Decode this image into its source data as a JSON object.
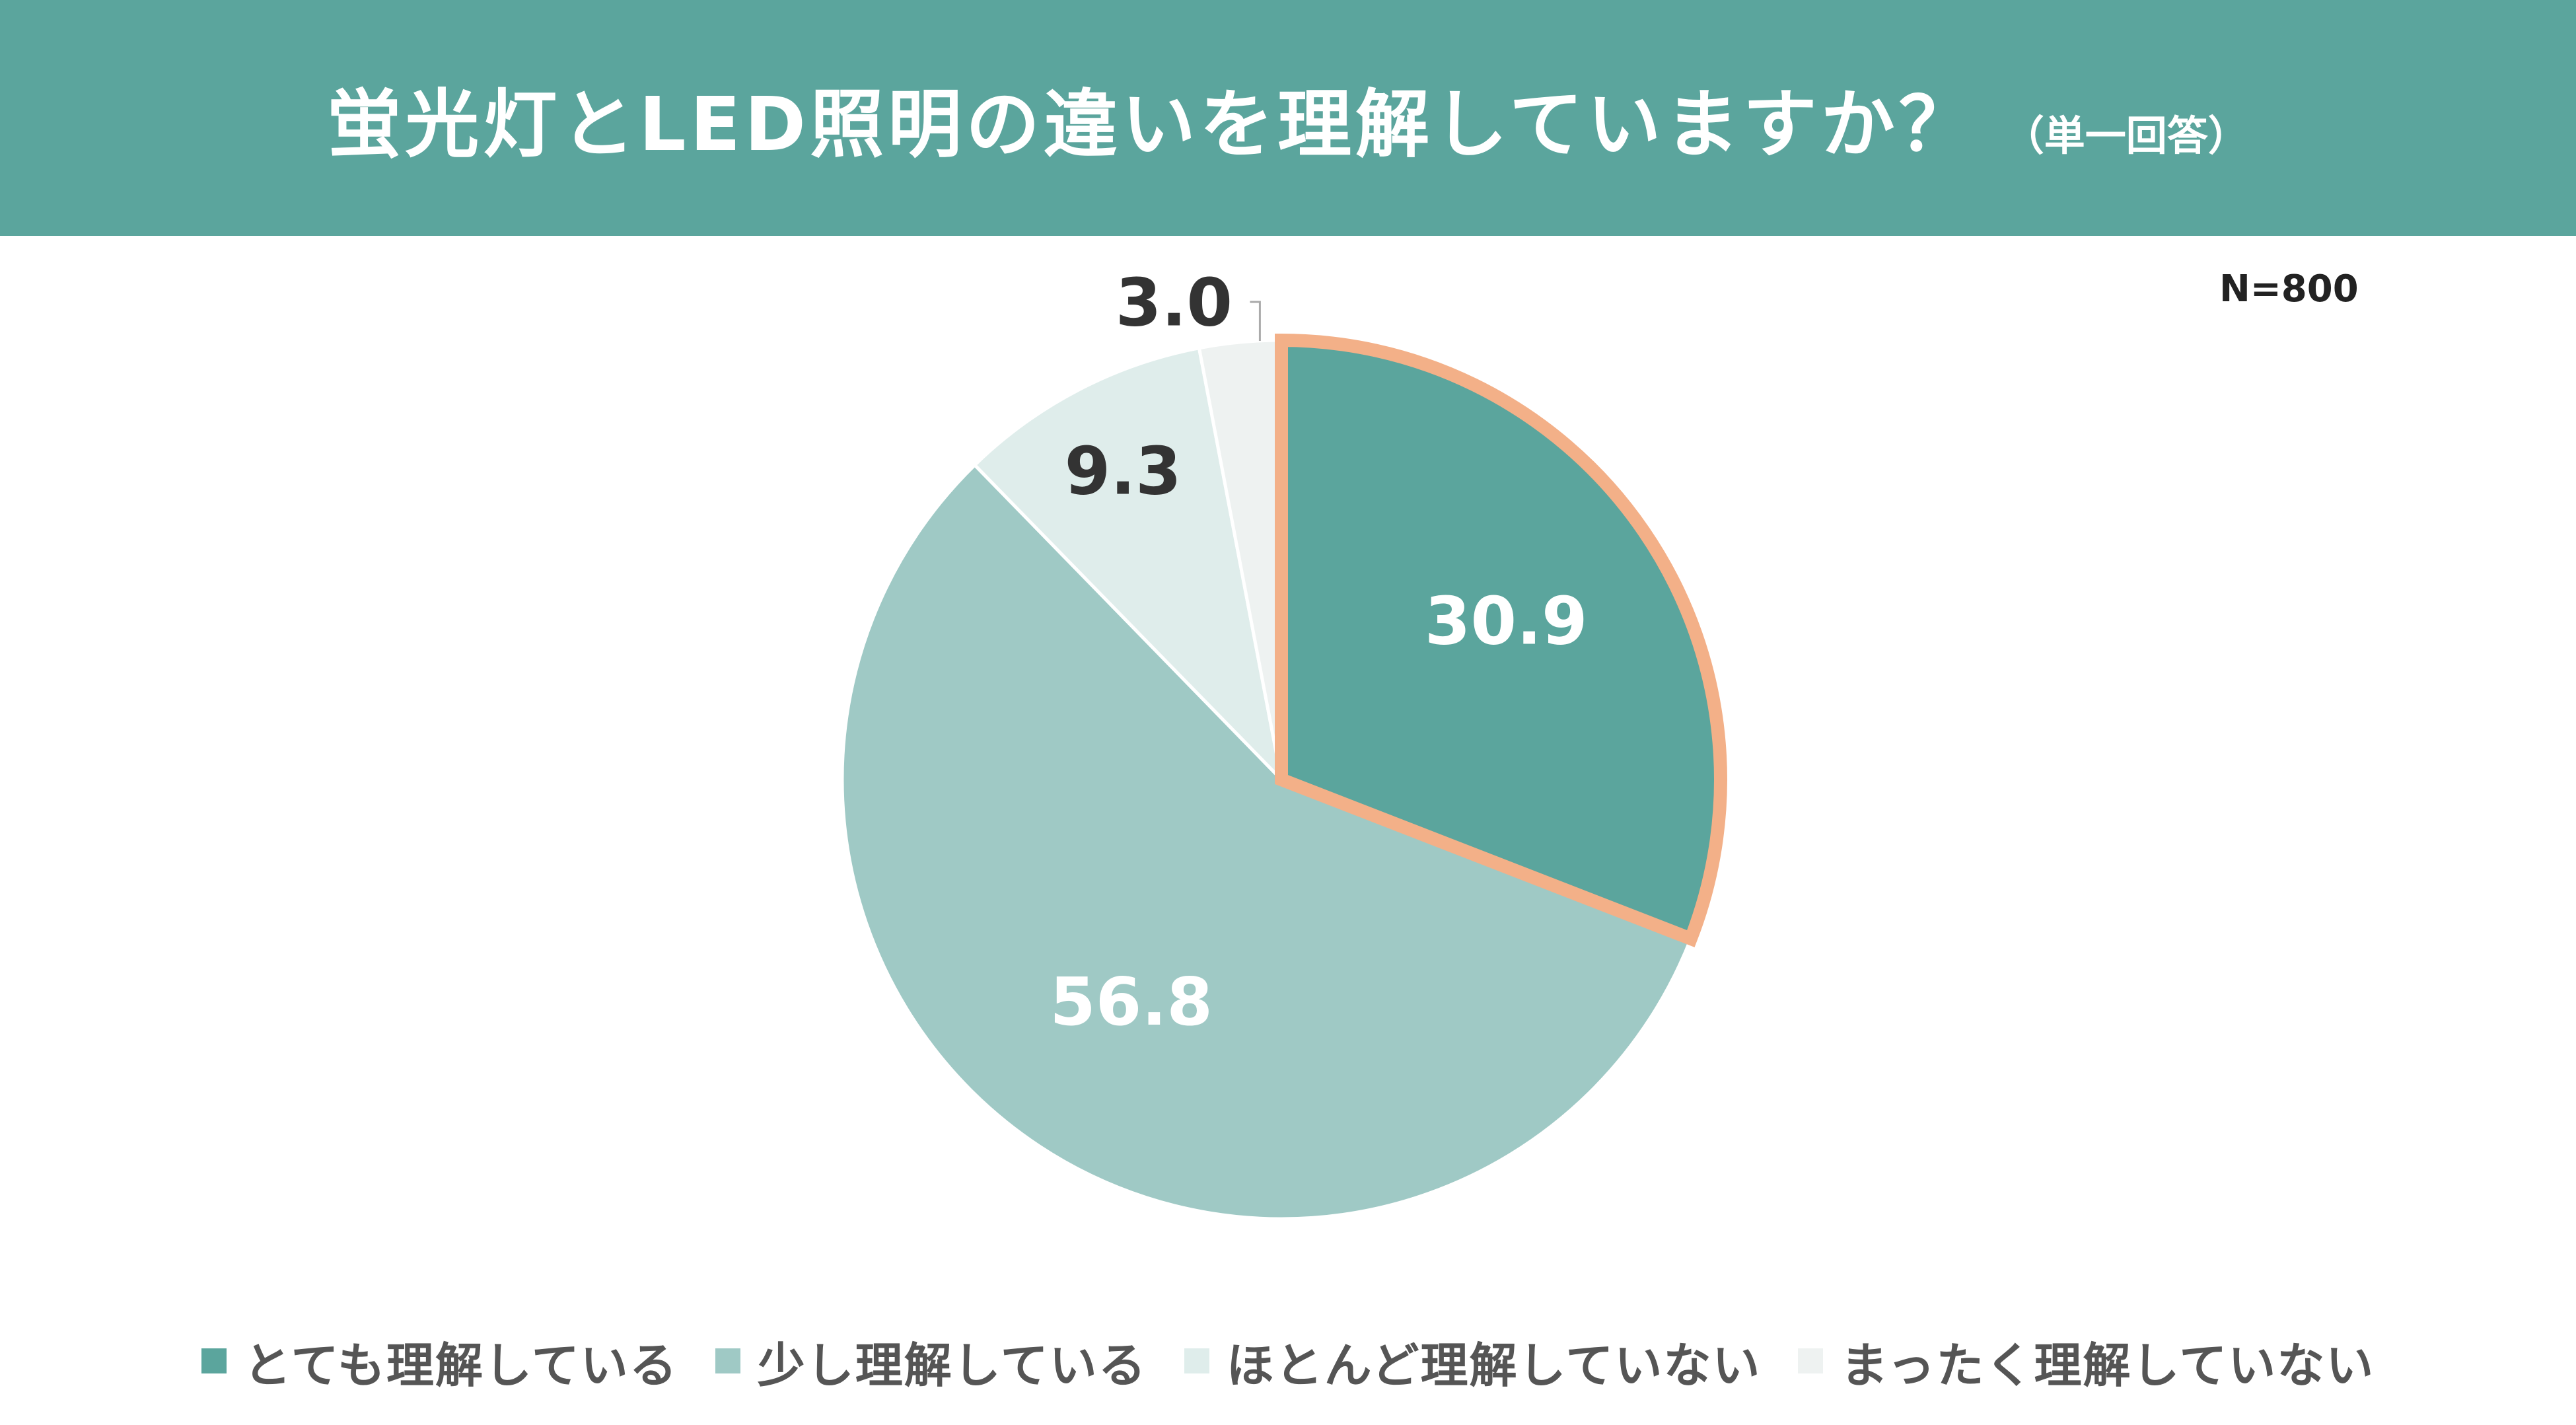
{
  "header": {
    "title": "蛍光灯とLED照明の違いを理解していますか？",
    "subtitle": "（単一回答）"
  },
  "sample_size": "N=800",
  "chart_data": {
    "type": "pie",
    "title": "蛍光灯とLED照明の違いを理解していますか？（単一回答）",
    "categories": [
      "とても理解している",
      "少し理解している",
      "ほとんど理解していない",
      "まったく理解していない"
    ],
    "values": [
      30.9,
      56.8,
      9.3,
      3.0
    ],
    "value_labels": [
      "30.9",
      "56.8",
      "9.3",
      "3.0"
    ],
    "colors": [
      "#5ba59d",
      "#9fc9c5",
      "#dfedeb",
      "#eef2f1"
    ],
    "label_colors": [
      "#ffffff",
      "#ffffff",
      "#333333",
      "#333333"
    ],
    "highlight_index": 0,
    "highlight_color": "#f3b088",
    "legend_position": "bottom"
  }
}
